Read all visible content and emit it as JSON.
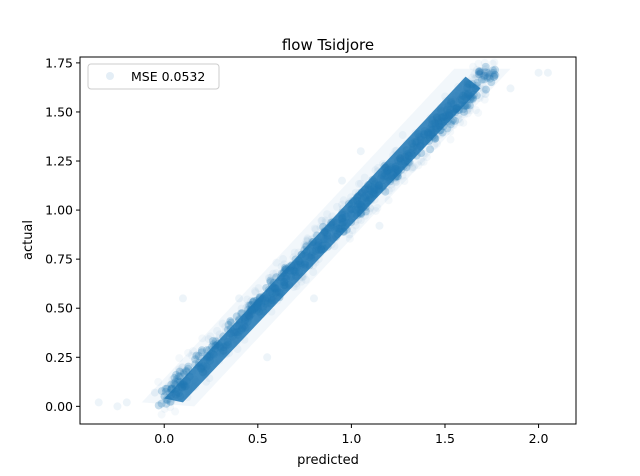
{
  "chart_data": {
    "type": "scatter",
    "title": "flow Tsidjore",
    "xlabel": "predicted",
    "ylabel": "actual",
    "xlim": [
      -0.45,
      2.2
    ],
    "ylim": [
      -0.09,
      1.78
    ],
    "xticks": [
      0.0,
      0.5,
      1.0,
      1.5,
      2.0
    ],
    "xtick_labels": [
      "0.0",
      "0.5",
      "1.0",
      "1.5",
      "2.0"
    ],
    "yticks": [
      0.0,
      0.25,
      0.5,
      0.75,
      1.0,
      1.25,
      1.5,
      1.75
    ],
    "ytick_labels": [
      "0.00",
      "0.25",
      "0.50",
      "0.75",
      "1.00",
      "1.25",
      "1.50",
      "1.75"
    ],
    "grid": false,
    "legend": {
      "position": "upper-left",
      "entries": [
        "MSE 0.0532"
      ]
    },
    "series": [
      {
        "name": "MSE 0.0532",
        "color": "#1f77b4",
        "alpha": 0.02,
        "trend": {
          "x": [
            0.0,
            1.75
          ],
          "y": [
            0.04,
            1.7
          ]
        },
        "points": [
          [
            -0.35,
            0.02
          ],
          [
            -0.25,
            0.0
          ],
          [
            -0.2,
            0.02
          ],
          [
            -0.05,
            0.07
          ],
          [
            0.0,
            0.05
          ],
          [
            0.05,
            0.12
          ],
          [
            0.1,
            0.1
          ],
          [
            0.15,
            0.18
          ],
          [
            0.2,
            0.2
          ],
          [
            0.25,
            0.28
          ],
          [
            0.3,
            0.27
          ],
          [
            0.35,
            0.35
          ],
          [
            0.4,
            0.38
          ],
          [
            0.45,
            0.45
          ],
          [
            0.5,
            0.45
          ],
          [
            0.55,
            0.52
          ],
          [
            0.6,
            0.58
          ],
          [
            0.65,
            0.62
          ],
          [
            0.7,
            0.65
          ],
          [
            0.75,
            0.72
          ],
          [
            0.8,
            0.76
          ],
          [
            0.85,
            0.82
          ],
          [
            0.9,
            0.86
          ],
          [
            0.95,
            0.92
          ],
          [
            1.0,
            0.96
          ],
          [
            1.05,
            1.0
          ],
          [
            1.1,
            1.05
          ],
          [
            1.15,
            1.1
          ],
          [
            1.2,
            1.15
          ],
          [
            1.25,
            1.2
          ],
          [
            1.3,
            1.25
          ],
          [
            1.35,
            1.3
          ],
          [
            1.4,
            1.35
          ],
          [
            1.45,
            1.4
          ],
          [
            1.5,
            1.45
          ],
          [
            1.55,
            1.5
          ],
          [
            1.6,
            1.58
          ],
          [
            1.65,
            1.62
          ],
          [
            1.7,
            1.68
          ],
          [
            1.75,
            1.7
          ],
          [
            1.85,
            1.62
          ],
          [
            2.0,
            1.7
          ],
          [
            2.05,
            1.7
          ],
          [
            0.1,
            0.55
          ],
          [
            0.55,
            0.25
          ],
          [
            1.15,
            0.92
          ],
          [
            0.95,
            1.15
          ],
          [
            0.4,
            0.55
          ],
          [
            0.8,
            0.55
          ],
          [
            1.05,
            1.3
          ]
        ]
      }
    ]
  }
}
